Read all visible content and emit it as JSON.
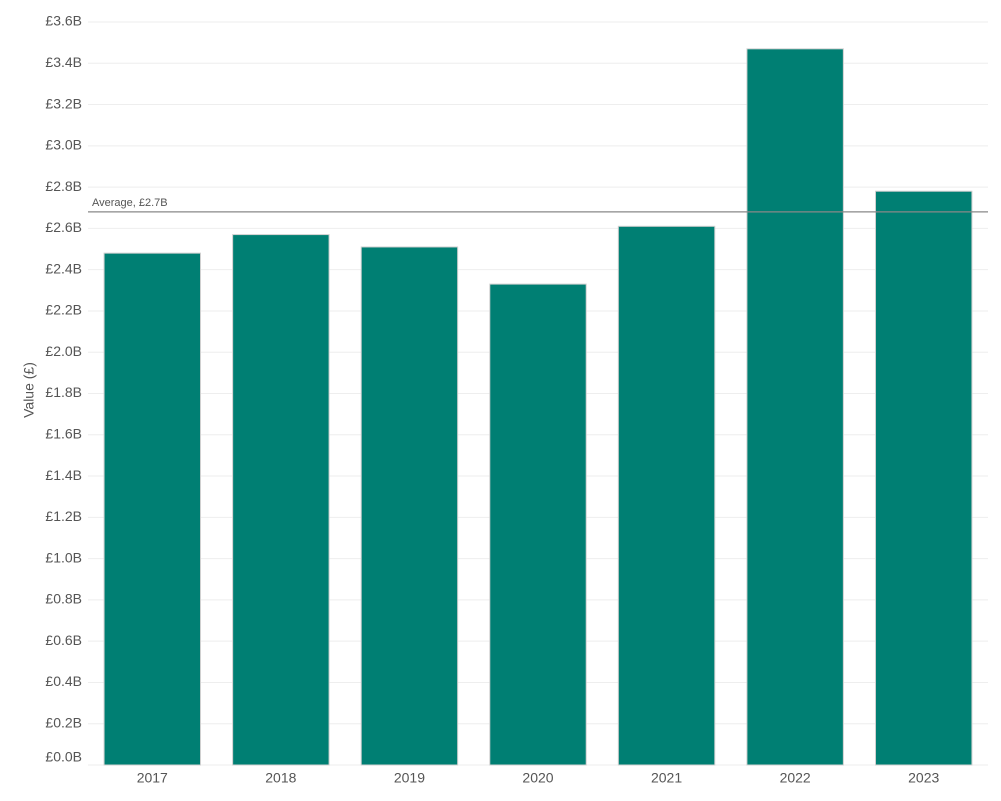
{
  "chart_data": {
    "type": "bar",
    "y_label": "Value (£)",
    "categories": [
      "2017",
      "2018",
      "2019",
      "2020",
      "2021",
      "2022",
      "2023"
    ],
    "values": [
      2480000000,
      2570000000,
      2510000000,
      2330000000,
      2610000000,
      3470000000,
      2780000000
    ],
    "color": "#007f73",
    "ylim": [
      0,
      3600000000
    ],
    "yticks": [
      {
        "value": 0,
        "label": "£0.0B"
      },
      {
        "value": 200000000,
        "label": "£0.2B"
      },
      {
        "value": 400000000,
        "label": "£0.4B"
      },
      {
        "value": 600000000,
        "label": "£0.6B"
      },
      {
        "value": 800000000,
        "label": "£0.8B"
      },
      {
        "value": 1000000000,
        "label": "£1.0B"
      },
      {
        "value": 1200000000,
        "label": "£1.2B"
      },
      {
        "value": 1400000000,
        "label": "£1.4B"
      },
      {
        "value": 1600000000,
        "label": "£1.6B"
      },
      {
        "value": 1800000000,
        "label": "£1.8B"
      },
      {
        "value": 2000000000,
        "label": "£2.0B"
      },
      {
        "value": 2200000000,
        "label": "£2.2B"
      },
      {
        "value": 2400000000,
        "label": "£2.4B"
      },
      {
        "value": 2600000000,
        "label": "£2.6B"
      },
      {
        "value": 2800000000,
        "label": "£2.8B"
      },
      {
        "value": 3000000000,
        "label": "£3.0B"
      },
      {
        "value": 3200000000,
        "label": "£3.2B"
      },
      {
        "value": 3400000000,
        "label": "£3.4B"
      },
      {
        "value": 3600000000,
        "label": "£3.6B"
      }
    ],
    "grid": true,
    "reference_line": {
      "value": 2680000000,
      "label": "Average, £2.7B"
    }
  }
}
